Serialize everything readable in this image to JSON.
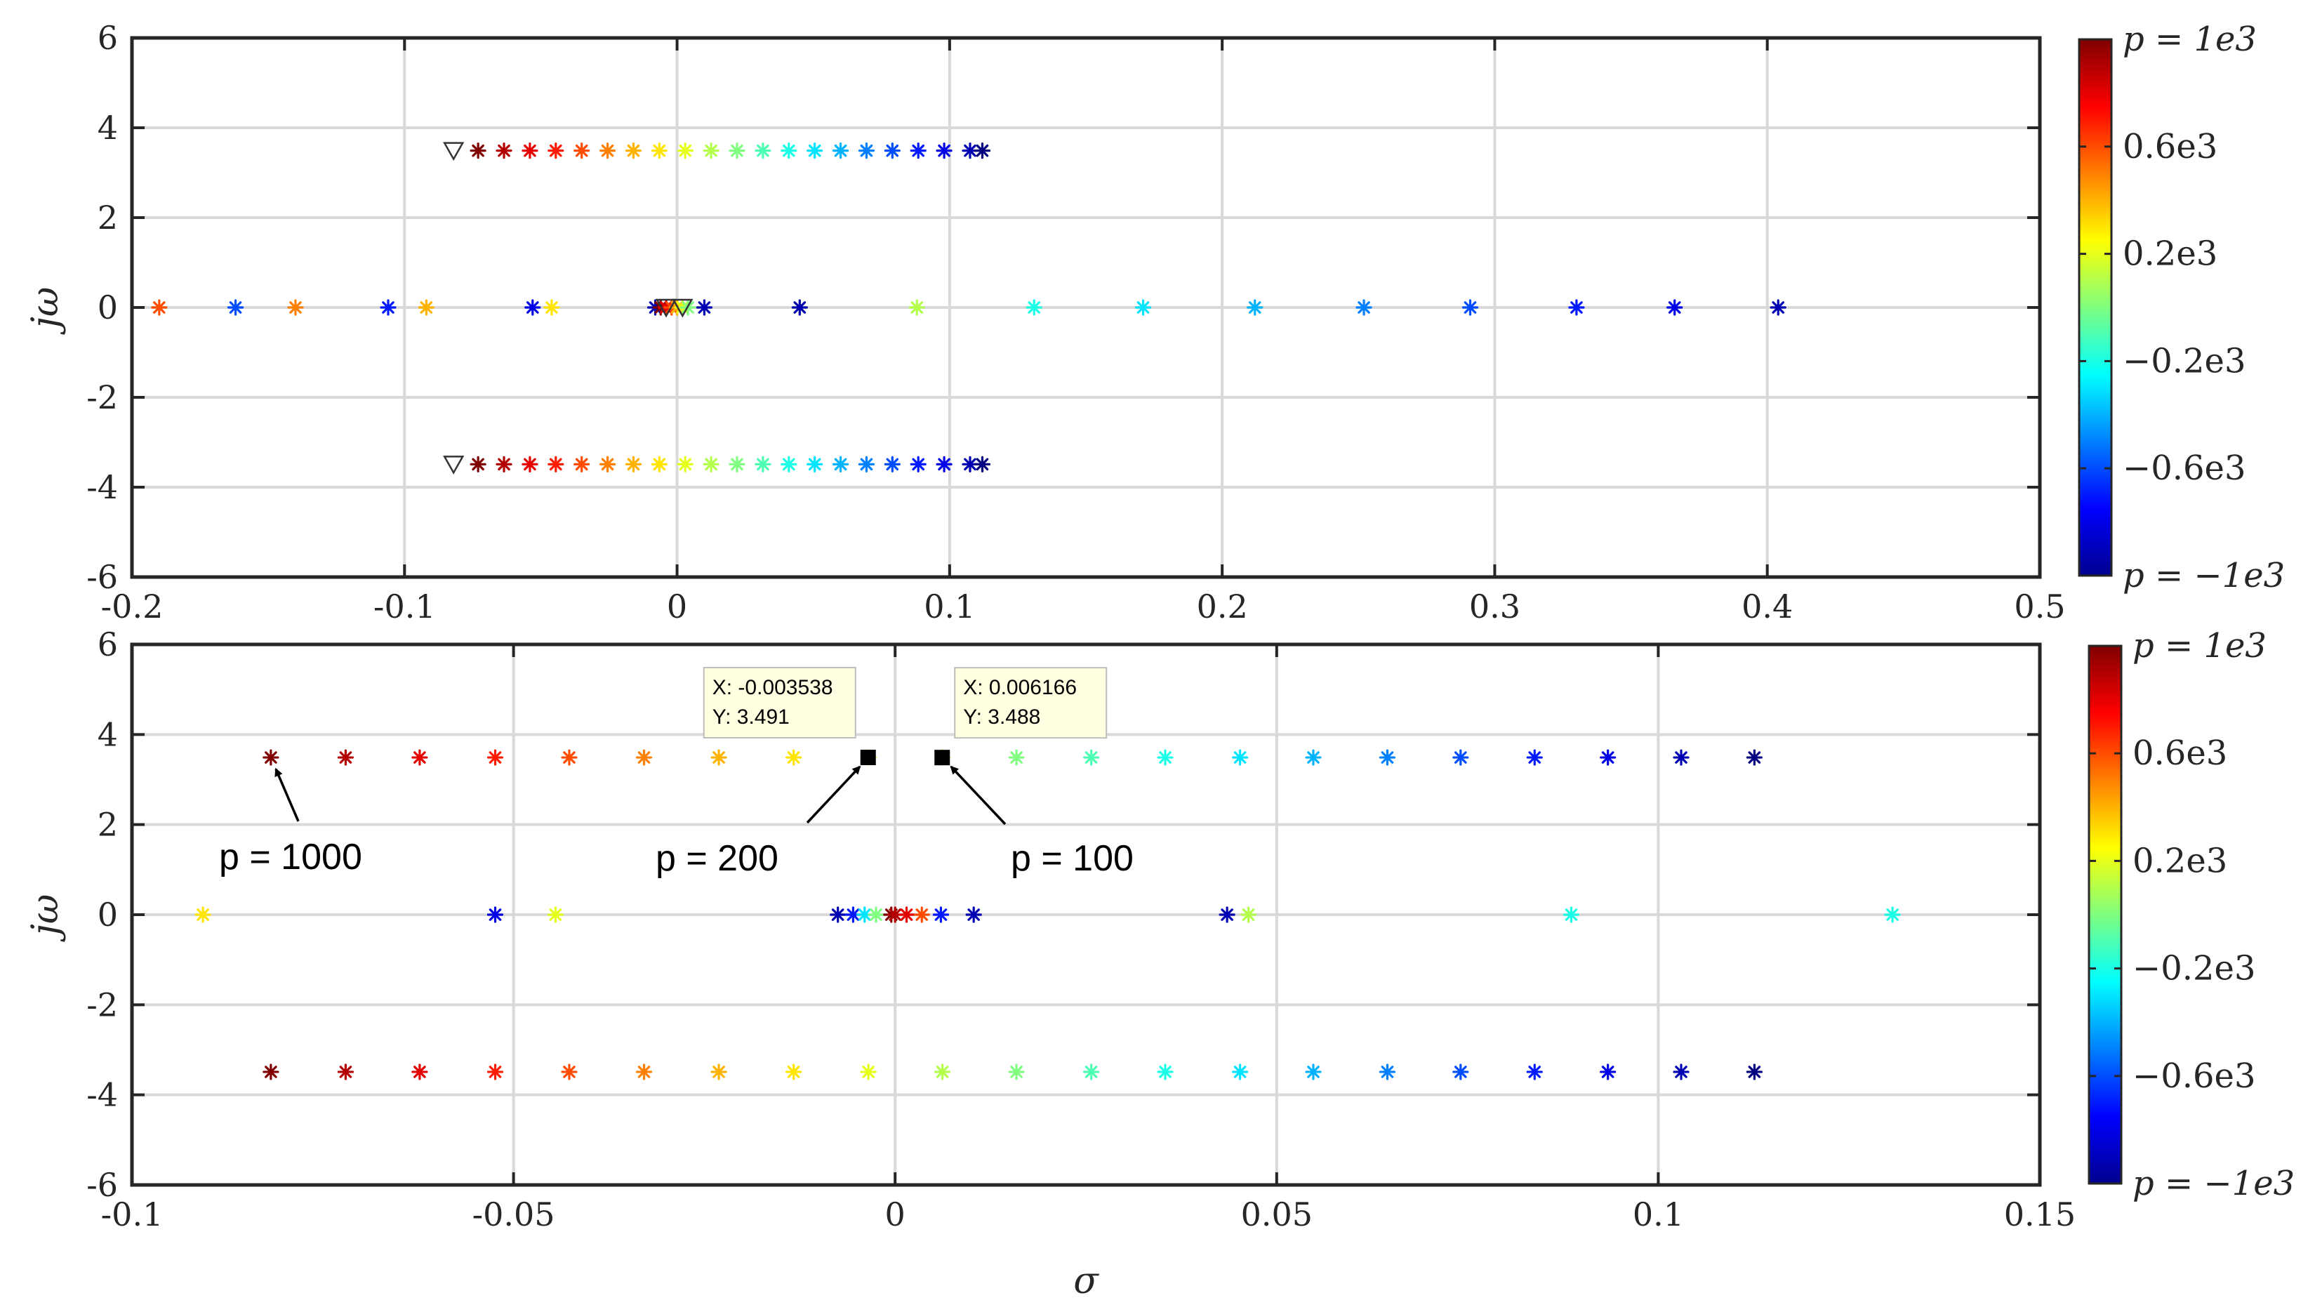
{
  "colors": {
    "grid": "#d9d9d9",
    "axis": "#262626",
    "tooltip_bg": "#ffffe1",
    "tooltip_border": "#bdbdbd",
    "colormap": "jet"
  },
  "chart_data": [
    {
      "type": "scatter",
      "panel": "top",
      "xlim": [
        -0.2,
        0.5
      ],
      "ylim": [
        -6,
        6
      ],
      "xticks": [
        "-0.2",
        "-0.1",
        "0",
        "0.1",
        "0.2",
        "0.3",
        "0.4",
        "0.5"
      ],
      "xtick_values": [
        -0.2,
        -0.1,
        0,
        0.1,
        0.2,
        0.3,
        0.4,
        0.5
      ],
      "yticks": [
        "6",
        "4",
        "2",
        "0",
        "-2",
        "-4",
        "-6"
      ],
      "ytick_values": [
        6,
        4,
        2,
        0,
        -2,
        -4,
        -6
      ],
      "xlabel": "",
      "ylabel": "jω",
      "grid": true,
      "colorbar": {
        "clim": [
          -1000,
          1000
        ],
        "labels": [
          "p = 1e3",
          "0.6e3",
          "0.2e3",
          "−0.2e3",
          "−0.6e3",
          "p = −1e3"
        ]
      },
      "complex_pairs": {
        "imag": 3.49,
        "real": [
          -0.073,
          -0.0635,
          -0.054,
          -0.0445,
          -0.035,
          -0.0255,
          -0.016,
          -0.0065,
          0.003,
          0.0125,
          0.022,
          0.0315,
          0.041,
          0.0505,
          0.06,
          0.0695,
          0.079,
          0.0885,
          0.098,
          0.1075,
          0.112
        ],
        "p": [
          1000,
          900,
          800,
          700,
          600,
          500,
          400,
          300,
          200,
          100,
          0,
          -100,
          -200,
          -300,
          -400,
          -500,
          -600,
          -700,
          -800,
          -900,
          -1000
        ]
      },
      "real_axis": {
        "real": [
          -0.19,
          -0.14,
          -0.092,
          -0.046,
          0.045,
          0.088,
          0.131,
          0.171,
          0.212,
          0.252,
          0.291,
          0.33,
          0.366,
          0.404,
          -0.162,
          -0.106,
          -0.053,
          0.045,
          -0.008,
          0.01
        ],
        "p": [
          600,
          500,
          400,
          300,
          200,
          100,
          -200,
          -300,
          -400,
          -500,
          -600,
          -700,
          -800,
          -900,
          -600,
          -700,
          -800,
          -900,
          -900,
          -900
        ]
      },
      "origin_cluster": {
        "real": [
          -0.006,
          -0.004,
          -0.002,
          0.0,
          0.002,
          0.004
        ],
        "p": [
          1000,
          800,
          600,
          400,
          200,
          0
        ]
      },
      "open_loop_markers": {
        "type": "triangle",
        "points": [
          [
            -0.082,
            3.49
          ],
          [
            -0.082,
            -3.49
          ],
          [
            -0.004,
            0
          ],
          [
            0.002,
            0
          ]
        ]
      }
    },
    {
      "type": "scatter",
      "panel": "bottom",
      "xlim": [
        -0.1,
        0.15
      ],
      "ylim": [
        -6,
        6
      ],
      "xticks": [
        "-0.1",
        "-0.05",
        "0",
        "0.05",
        "0.1",
        "0.15"
      ],
      "xtick_values": [
        -0.1,
        -0.05,
        0,
        0.05,
        0.1,
        0.15
      ],
      "yticks": [
        "6",
        "4",
        "2",
        "0",
        "-2",
        "-4",
        "-6"
      ],
      "ytick_values": [
        6,
        4,
        2,
        0,
        -2,
        -4,
        -6
      ],
      "xlabel": "σ",
      "ylabel": "jω",
      "grid": true,
      "colorbar": {
        "clim": [
          -1000,
          1000
        ],
        "labels": [
          "p = 1e3",
          "0.6e3",
          "0.2e3",
          "−0.2e3",
          "−0.6e3",
          "p = −1e3"
        ]
      },
      "complex_pairs": {
        "imag": 3.49,
        "real": [
          -0.0818,
          -0.072,
          -0.0623,
          -0.0524,
          -0.0427,
          -0.0329,
          -0.0231,
          -0.0133,
          -0.0035,
          0.0062,
          0.0159,
          0.0257,
          0.0354,
          0.0452,
          0.0548,
          0.0645,
          0.0741,
          0.0838,
          0.0934,
          0.103,
          0.1126
        ],
        "p": [
          1000,
          900,
          800,
          700,
          600,
          500,
          400,
          300,
          200,
          100,
          0,
          -100,
          -200,
          -300,
          -400,
          -500,
          -600,
          -700,
          -800,
          -900,
          -1000
        ]
      },
      "real_axis": {
        "real": [
          -0.0907,
          -0.0524,
          -0.0445,
          -0.0075,
          -0.0055,
          -0.004,
          -0.0025,
          -0.0005,
          0.0,
          0.0015,
          0.0035,
          0.006,
          0.0103,
          0.0435,
          0.0463,
          0.0886,
          0.1307
        ],
        "p": [
          300,
          -800,
          200,
          -900,
          -700,
          -300,
          0,
          1000,
          900,
          800,
          600,
          -700,
          -900,
          -900,
          100,
          -200,
          -200
        ]
      },
      "datatips": [
        {
          "x": -0.003538,
          "y": 3.491,
          "label_x": "X: -0.003538",
          "label_y": "Y: 3.491"
        },
        {
          "x": 0.006166,
          "y": 3.488,
          "label_x": "X: 0.006166",
          "label_y": "Y: 3.488"
        }
      ],
      "annotations": [
        {
          "text": "p = 1000",
          "target_x": -0.0818,
          "target_y": 3.49
        },
        {
          "text": "p = 200",
          "target_x": -0.0035,
          "target_y": 3.49
        },
        {
          "text": "p = 100",
          "target_x": 0.0062,
          "target_y": 3.49
        }
      ]
    }
  ]
}
